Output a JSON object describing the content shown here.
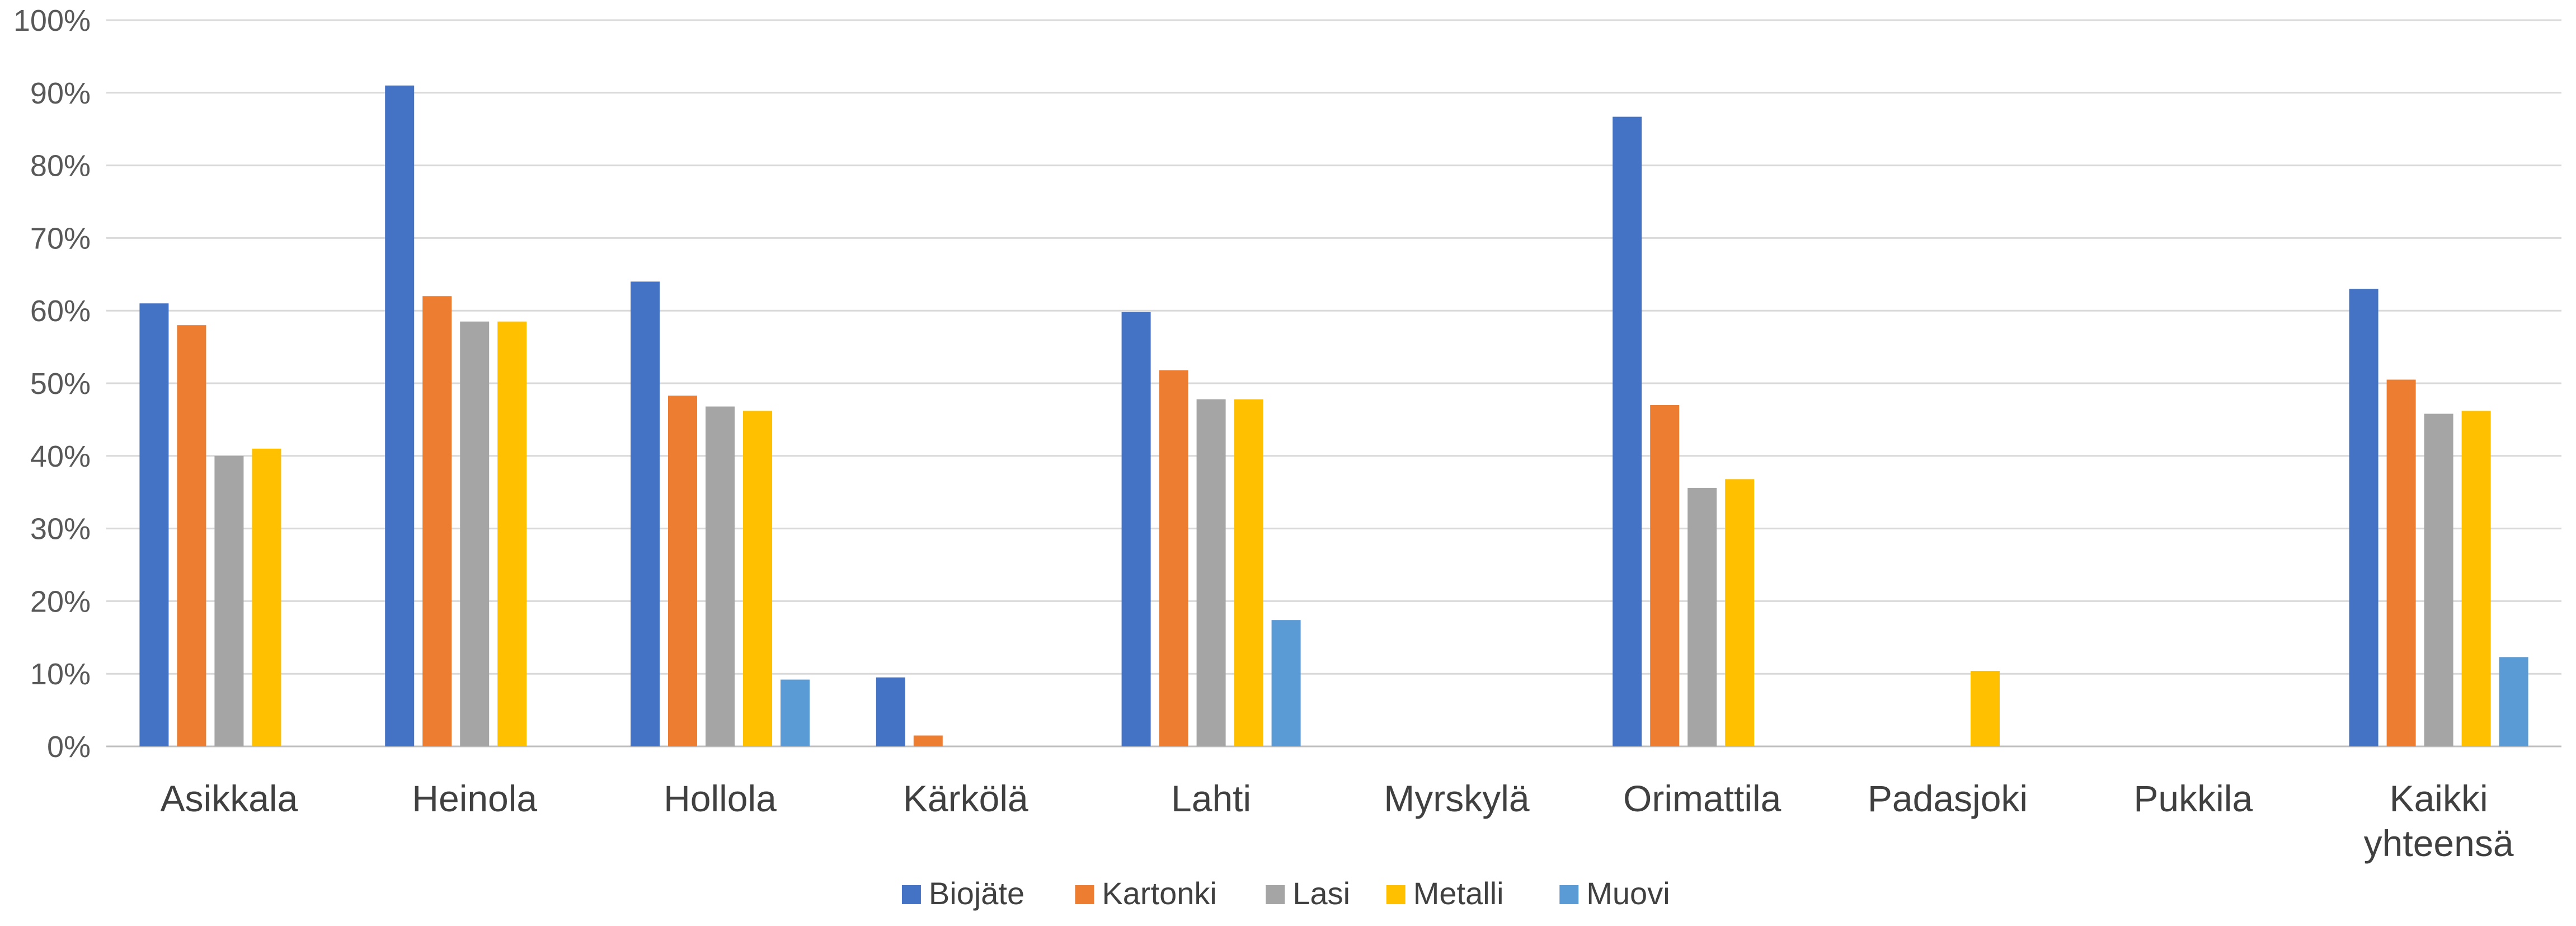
{
  "chart_data": {
    "type": "bar",
    "categories": [
      [
        "Asikkala"
      ],
      [
        "Heinola"
      ],
      [
        "Hollola"
      ],
      [
        "Kärkölä"
      ],
      [
        "Lahti"
      ],
      [
        "Myrskylä"
      ],
      [
        "Orimattila"
      ],
      [
        "Padasjoki"
      ],
      [
        "Pukkila"
      ],
      [
        "Kaikki",
        "yhteensä"
      ]
    ],
    "series": [
      {
        "name": "Biojäte",
        "color": "#4472C4",
        "values": [
          61,
          91,
          64,
          9.5,
          59.8,
          null,
          86.7,
          null,
          null,
          63
        ]
      },
      {
        "name": "Kartonki",
        "color": "#ED7D31",
        "values": [
          58,
          62,
          48.3,
          1.5,
          51.8,
          null,
          47,
          null,
          null,
          50.5
        ]
      },
      {
        "name": "Lasi",
        "color": "#A5A5A5",
        "values": [
          40,
          58.5,
          46.8,
          null,
          47.8,
          null,
          35.6,
          null,
          null,
          45.8
        ]
      },
      {
        "name": "Metalli",
        "color": "#FFC000",
        "values": [
          41,
          58.5,
          46.2,
          null,
          47.8,
          null,
          36.8,
          10.4,
          null,
          46.2
        ]
      },
      {
        "name": "Muovi",
        "color": "#5B9BD5",
        "values": [
          null,
          null,
          9.2,
          null,
          17.4,
          null,
          null,
          null,
          null,
          12.3
        ]
      }
    ],
    "ylim": [
      0,
      100
    ],
    "yticks": [
      0,
      10,
      20,
      30,
      40,
      50,
      60,
      70,
      80,
      90,
      100
    ],
    "ytick_suffix": "%",
    "grid": true,
    "legend_position": "bottom",
    "title": "",
    "xlabel": "",
    "ylabel": ""
  }
}
